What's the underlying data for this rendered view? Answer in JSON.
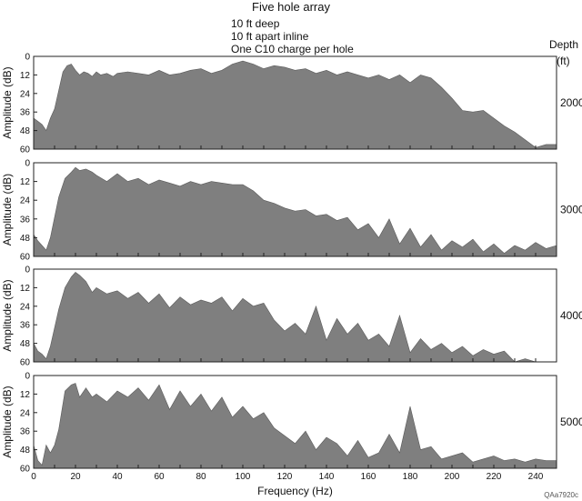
{
  "chart_data": {
    "type": "area",
    "title": "Five hole array",
    "subtitle_lines": [
      "10 ft deep",
      "10 ft apart inline",
      "One C10 charge per hole"
    ],
    "depth_header": [
      "Depth",
      "(ft)"
    ],
    "xlabel": "Frequency (Hz)",
    "ylabel": "Amplitude (dB)",
    "xlim": [
      0,
      250
    ],
    "ylim": [
      0,
      60
    ],
    "y_inverted": true,
    "x_ticks": [
      0,
      10,
      20,
      30,
      40,
      50,
      60,
      70,
      80,
      90,
      100,
      110,
      120,
      130,
      140,
      150,
      160,
      170,
      180,
      190,
      200,
      210,
      220,
      230,
      240
    ],
    "x_tick_labels": [
      "0",
      "",
      "20",
      "",
      "40",
      "",
      "60",
      "",
      "80",
      "",
      "100",
      "",
      "120",
      "",
      "140",
      "",
      "160",
      "",
      "180",
      "",
      "200",
      "",
      "220",
      "",
      "240"
    ],
    "y_ticks": [
      0,
      12,
      24,
      36,
      48,
      60
    ],
    "fill_color": "#7f7f7f",
    "panels": [
      {
        "depth": "2000",
        "x": [
          0,
          2,
          4,
          6,
          8,
          10,
          12,
          14,
          16,
          18,
          20,
          22,
          24,
          26,
          28,
          30,
          32,
          35,
          38,
          40,
          45,
          50,
          55,
          60,
          65,
          70,
          75,
          80,
          85,
          90,
          95,
          100,
          105,
          110,
          115,
          120,
          125,
          130,
          135,
          140,
          145,
          150,
          155,
          160,
          165,
          170,
          175,
          180,
          185,
          190,
          195,
          200,
          205,
          210,
          215,
          220,
          225,
          230,
          235,
          240,
          245,
          250
        ],
        "y": [
          40,
          42,
          44,
          48,
          40,
          34,
          22,
          10,
          6,
          5,
          9,
          12,
          10,
          11,
          13,
          10,
          12,
          11,
          13,
          11,
          10,
          11,
          12,
          9,
          12,
          11,
          9,
          8,
          11,
          9,
          5,
          3,
          5,
          8,
          6,
          7,
          9,
          8,
          11,
          9,
          12,
          10,
          12,
          14,
          12,
          15,
          12,
          17,
          12,
          14,
          20,
          27,
          35,
          36,
          35,
          40,
          45,
          49,
          54,
          59,
          57,
          57
        ]
      },
      {
        "depth": "3000",
        "x": [
          0,
          2,
          4,
          6,
          8,
          10,
          12,
          15,
          18,
          20,
          22,
          25,
          28,
          30,
          35,
          40,
          45,
          50,
          55,
          60,
          65,
          70,
          75,
          80,
          85,
          90,
          95,
          100,
          105,
          110,
          115,
          120,
          125,
          130,
          135,
          140,
          145,
          150,
          155,
          160,
          165,
          170,
          175,
          180,
          185,
          190,
          195,
          200,
          205,
          210,
          215,
          220,
          225,
          230,
          235,
          240,
          245,
          250
        ],
        "y": [
          46,
          50,
          53,
          56,
          48,
          35,
          22,
          10,
          6,
          3,
          5,
          4,
          6,
          8,
          12,
          7,
          12,
          10,
          14,
          11,
          13,
          15,
          12,
          14,
          12,
          13,
          14,
          14,
          18,
          24,
          26,
          29,
          31,
          30,
          34,
          33,
          37,
          35,
          43,
          39,
          48,
          36,
          52,
          42,
          54,
          46,
          56,
          50,
          54,
          49,
          57,
          52,
          58,
          53,
          56,
          51,
          55,
          53
        ]
      },
      {
        "depth": "4000",
        "x": [
          0,
          2,
          4,
          6,
          8,
          10,
          12,
          15,
          18,
          20,
          22,
          25,
          28,
          30,
          35,
          40,
          45,
          50,
          55,
          60,
          65,
          70,
          75,
          80,
          85,
          90,
          95,
          100,
          105,
          110,
          115,
          120,
          125,
          130,
          135,
          140,
          145,
          150,
          155,
          160,
          165,
          170,
          175,
          180,
          185,
          190,
          195,
          200,
          205,
          210,
          215,
          220,
          225,
          230,
          235,
          240,
          245,
          250
        ],
        "y": [
          48,
          53,
          55,
          58,
          50,
          38,
          26,
          12,
          5,
          2,
          4,
          8,
          15,
          12,
          16,
          14,
          19,
          15,
          22,
          16,
          25,
          18,
          23,
          20,
          22,
          18,
          27,
          19,
          24,
          22,
          33,
          40,
          35,
          42,
          24,
          46,
          32,
          42,
          35,
          46,
          42,
          50,
          30,
          54,
          45,
          52,
          48,
          54,
          50,
          56,
          52,
          55,
          53,
          60,
          58,
          60,
          60,
          60
        ]
      },
      {
        "depth": "5000",
        "x": [
          0,
          2,
          4,
          6,
          8,
          10,
          12,
          15,
          18,
          20,
          22,
          25,
          28,
          30,
          35,
          40,
          45,
          50,
          55,
          60,
          65,
          70,
          75,
          80,
          85,
          90,
          95,
          100,
          105,
          110,
          115,
          120,
          125,
          130,
          135,
          140,
          145,
          150,
          155,
          160,
          165,
          170,
          175,
          180,
          185,
          190,
          195,
          200,
          205,
          210,
          215,
          220,
          225,
          230,
          235,
          240,
          245,
          250
        ],
        "y": [
          45,
          55,
          58,
          45,
          50,
          45,
          35,
          10,
          6,
          5,
          14,
          8,
          14,
          12,
          17,
          10,
          14,
          8,
          16,
          6,
          22,
          10,
          20,
          12,
          23,
          14,
          27,
          20,
          28,
          24,
          34,
          39,
          44,
          36,
          48,
          40,
          44,
          52,
          42,
          53,
          50,
          38,
          50,
          20,
          48,
          46,
          54,
          52,
          50,
          56,
          54,
          52,
          55,
          54,
          56,
          54,
          55,
          55
        ]
      }
    ]
  },
  "figure_code": "QAa7920c"
}
